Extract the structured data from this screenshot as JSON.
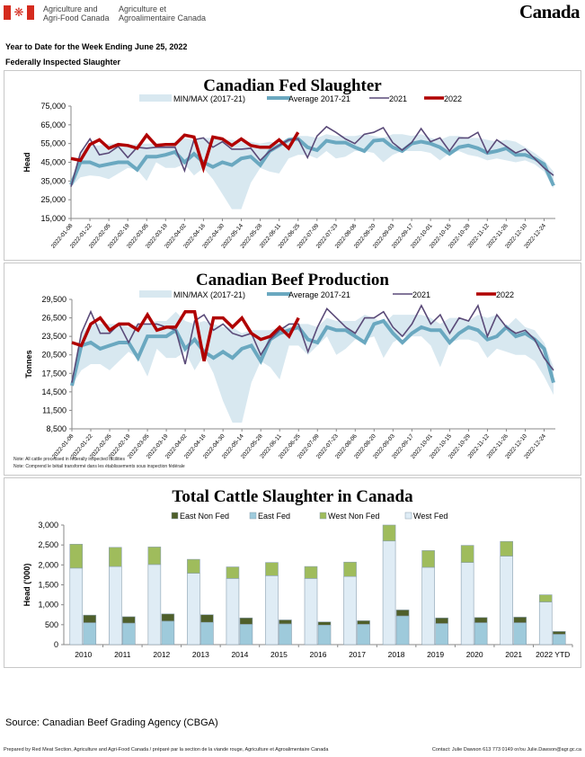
{
  "header": {
    "dept_en_line1": "Agriculture and",
    "dept_en_line2": "Agri-Food Canada",
    "dept_fr_line1": "Agriculture et",
    "dept_fr_line2": "Agroalimentaire Canada",
    "wordmark": "Canada",
    "flag_icon": "canada-flag-icon"
  },
  "subtitle": "Year to Date for the Week Ending June 25, 2022",
  "section": "Federally Inspected Slaughter",
  "colors": {
    "minmax": "#d8e8f0",
    "average": "#6aa8c0",
    "y2021": "#5a4a78",
    "y2022": "#b00000",
    "east_non_fed": "#4f5f2a",
    "east_fed": "#9ecadb",
    "west_non_fed": "#9fbc5c",
    "west_fed": "#dfecf5"
  },
  "chart_data": [
    {
      "type": "line",
      "title": "Canadian Fed Slaughter",
      "ylabel": "Head",
      "xlabel": "",
      "ylim": [
        15000,
        75000
      ],
      "yticks": [
        15000,
        25000,
        35000,
        45000,
        55000,
        65000,
        75000
      ],
      "ytick_labels": [
        "15,000",
        "25,000",
        "35,000",
        "45,000",
        "55,000",
        "65,000",
        "75,000"
      ],
      "xtick_labels": [
        "2022-01-08",
        "2022-01-22",
        "2022-02-05",
        "2022-02-19",
        "2022-03-05",
        "2022-03-19",
        "2022-04-02",
        "2022-04-16",
        "2022-04-30",
        "2022-05-14",
        "2022-05-28",
        "2022-06-11",
        "2022-06-25",
        "2022-07-09",
        "2022-07-23",
        "2022-08-06",
        "2022-08-20",
        "2022-09-03",
        "2022-09-17",
        "2022-10-01",
        "2022-10-15",
        "2022-10-29",
        "2022-11-12",
        "2022-11-26",
        "2022-12-10",
        "2022-12-24"
      ],
      "legend": [
        "MIN/MAX (2017-21)",
        "Average 2017-21",
        "2021",
        "2022"
      ],
      "legend_position": "top",
      "n_weeks": 52,
      "series": [
        {
          "name": "MIN",
          "values": [
            32000,
            37000,
            38000,
            37500,
            36000,
            39000,
            42000,
            41000,
            35000,
            45000,
            42000,
            42000,
            44000,
            38000,
            42000,
            36000,
            28000,
            20000,
            20000,
            34000,
            42000,
            40000,
            39000,
            47000,
            49000,
            49000,
            47000,
            51000,
            47000,
            48000,
            51000,
            51000,
            50000,
            45000,
            49000,
            51000,
            51000,
            51000,
            50000,
            46000,
            50000,
            51000,
            49000,
            48000,
            46000,
            47000,
            46000,
            45000,
            46000,
            44000,
            40000,
            31000
          ]
        },
        {
          "name": "MAX",
          "values": [
            35000,
            51000,
            54000,
            54000,
            55000,
            55000,
            54000,
            55000,
            55000,
            55000,
            55000,
            56000,
            58000,
            57000,
            58000,
            58000,
            57000,
            57000,
            56000,
            56000,
            55000,
            56000,
            55000,
            58000,
            59000,
            59000,
            58000,
            60000,
            59000,
            59000,
            59000,
            60000,
            59000,
            58000,
            60000,
            60000,
            59000,
            60000,
            58000,
            57000,
            59000,
            59000,
            58000,
            58000,
            57000,
            56000,
            57000,
            56000,
            53000,
            50000,
            46000,
            40000
          ]
        },
        {
          "name": "Average 2017-21",
          "values": [
            33000,
            45000,
            45000,
            43000,
            44000,
            45000,
            45000,
            41000,
            48000,
            48000,
            49000,
            50500,
            45000,
            49500,
            45000,
            42500,
            45000,
            43500,
            47000,
            48000,
            43500,
            51000,
            54000,
            57000,
            57500,
            53000,
            51500,
            56500,
            55500,
            55500,
            53000,
            51000,
            56500,
            57000,
            53000,
            51000,
            55000,
            56000,
            55000,
            53000,
            49500,
            53000,
            54000,
            52500,
            50000,
            51000,
            52500,
            49000,
            49000,
            47000,
            44000,
            32500
          ]
        },
        {
          "name": "2021",
          "values": [
            32000,
            50000,
            57500,
            49000,
            50000,
            53500,
            47500,
            53000,
            52500,
            53000,
            53000,
            53000,
            40500,
            57000,
            58000,
            53000,
            56000,
            52000,
            52000,
            52500,
            46000,
            51000,
            54000,
            57000,
            57500,
            47500,
            59000,
            64000,
            61000,
            57500,
            55000,
            60000,
            61000,
            63500,
            55500,
            51500,
            55500,
            63000,
            56000,
            58000,
            51000,
            58000,
            58000,
            61000,
            50000,
            57000,
            53500,
            50000,
            52000,
            47000,
            42000,
            38000
          ]
        },
        {
          "name": "2022",
          "values": [
            47000,
            46000,
            54500,
            57000,
            52500,
            54500,
            54000,
            52500,
            59500,
            54000,
            54500,
            54500,
            59500,
            58500,
            42000,
            58500,
            57500,
            54000,
            57500,
            54000,
            53000,
            53000,
            57000,
            52500,
            61000
          ]
        }
      ]
    },
    {
      "type": "line",
      "title": "Canadian Beef Production",
      "ylabel": "Tonnes",
      "xlabel": "",
      "ylim": [
        8500,
        29500
      ],
      "yticks": [
        8500,
        11500,
        14500,
        17500,
        20500,
        23500,
        26500,
        29500
      ],
      "ytick_labels": [
        "8,500",
        "11,500",
        "14,500",
        "17,500",
        "20,500",
        "23,500",
        "26,500",
        "29,500"
      ],
      "xtick_labels": [
        "2022-01-08",
        "2022-01-22",
        "2022-02-05",
        "2022-02-19",
        "2022-03-05",
        "2022-03-19",
        "2022-04-02",
        "2022-04-16",
        "2022-04-30",
        "2022-05-14",
        "2022-05-28",
        "2022-06-11",
        "2022-06-25",
        "2022-07-09",
        "2022-07-23",
        "2022-08-06",
        "2022-08-20",
        "2022-09-03",
        "2022-09-17",
        "2022-10-01",
        "2022-10-15",
        "2022-10-29",
        "2022-11-12",
        "2022-11-26",
        "2022-12-10",
        "2022-12-24"
      ],
      "legend": [
        "MIN/MAX (2017-21)",
        "Average 2017-21",
        "2021",
        "2022"
      ],
      "legend_position": "top",
      "n_weeks": 52,
      "series": [
        {
          "name": "MIN",
          "values": [
            15500,
            18000,
            19000,
            19000,
            18000,
            19500,
            21000,
            20000,
            17000,
            21500,
            20000,
            20000,
            21000,
            18000,
            20500,
            17500,
            13000,
            9500,
            9500,
            16000,
            19500,
            18500,
            16500,
            22000,
            22000,
            20500,
            22000,
            23500,
            20500,
            21500,
            23000,
            23000,
            23500,
            20000,
            22500,
            23500,
            23500,
            23500,
            22000,
            18500,
            22500,
            23000,
            23000,
            22500,
            20000,
            21500,
            21000,
            20500,
            20500,
            19500,
            17000,
            14000
          ]
        },
        {
          "name": "MAX",
          "values": [
            16500,
            24000,
            25500,
            25500,
            25500,
            25500,
            25000,
            25500,
            25500,
            26000,
            26000,
            27500,
            26000,
            25500,
            26000,
            25500,
            25000,
            25000,
            24000,
            24500,
            24500,
            24500,
            25000,
            25000,
            25500,
            25500,
            25000,
            26500,
            26000,
            26000,
            26000,
            27000,
            26500,
            25500,
            27000,
            27000,
            27000,
            27000,
            26500,
            25500,
            26500,
            26500,
            26000,
            27000,
            26500,
            27000,
            25000,
            26500,
            25000,
            24500,
            22500,
            18500
          ]
        },
        {
          "name": "Average 2017-21",
          "values": [
            15500,
            22000,
            22500,
            21500,
            22000,
            22500,
            22500,
            20000,
            23500,
            23500,
            23500,
            24500,
            21500,
            23000,
            21000,
            20000,
            21000,
            20000,
            21500,
            22000,
            19500,
            23000,
            24000,
            24500,
            25000,
            23000,
            22500,
            25000,
            24500,
            24500,
            23500,
            22500,
            25500,
            26000,
            24000,
            22500,
            24000,
            25000,
            24500,
            24500,
            22500,
            24000,
            25000,
            24500,
            23000,
            23500,
            25000,
            23500,
            24000,
            23000,
            21500,
            16000
          ]
        },
        {
          "name": "2021",
          "values": [
            16000,
            24000,
            27500,
            24000,
            24000,
            25500,
            22500,
            25500,
            25500,
            25500,
            25000,
            24500,
            19000,
            26000,
            27000,
            24500,
            25500,
            24000,
            23500,
            24000,
            20500,
            23000,
            24500,
            25500,
            25500,
            21000,
            25000,
            28000,
            26500,
            25000,
            24000,
            26500,
            26500,
            27500,
            25000,
            23500,
            25500,
            28500,
            25500,
            27000,
            24000,
            26500,
            26000,
            28500,
            23500,
            27000,
            25000,
            24000,
            24500,
            23000,
            20000,
            18000
          ]
        },
        {
          "name": "2022",
          "values": [
            22500,
            22000,
            25500,
            26500,
            24500,
            25500,
            25500,
            24500,
            27000,
            24500,
            25000,
            25000,
            27500,
            27500,
            19500,
            26500,
            26500,
            25000,
            26500,
            24000,
            23000,
            23500,
            25000,
            23500,
            26500
          ]
        }
      ]
    },
    {
      "type": "bar",
      "stacked": true,
      "title": "Total Cattle Slaughter in Canada",
      "ylabel": "Head ('000)",
      "xlabel": "",
      "ylim": [
        0,
        3000
      ],
      "yticks": [
        0,
        500,
        1000,
        1500,
        2000,
        2500,
        3000
      ],
      "ytick_labels": [
        "0",
        "500",
        "1,000",
        "1,500",
        "2,000",
        "2,500",
        "3,000"
      ],
      "categories": [
        "2010",
        "2011",
        "2012",
        "2013",
        "2014",
        "2015",
        "2016",
        "2017",
        "2018",
        "2019",
        "2020",
        "2021",
        "2022 YTD"
      ],
      "legend": [
        "East Non Fed",
        "East Fed",
        "West Non Fed",
        "West Fed"
      ],
      "legend_position": "top",
      "series": [
        {
          "name": "West Fed",
          "stack": "west",
          "values": [
            1920,
            1960,
            2010,
            1790,
            1660,
            1730,
            1660,
            1710,
            2600,
            1940,
            2060,
            2220,
            1070
          ]
        },
        {
          "name": "West Non Fed",
          "stack": "west",
          "values": [
            600,
            480,
            440,
            350,
            290,
            330,
            300,
            360,
            400,
            420,
            430,
            370,
            180
          ]
        },
        {
          "name": "East Fed",
          "stack": "east",
          "values": [
            550,
            540,
            590,
            560,
            510,
            520,
            490,
            510,
            720,
            530,
            550,
            550,
            260
          ]
        },
        {
          "name": "East Non Fed",
          "stack": "east",
          "values": [
            190,
            160,
            180,
            190,
            160,
            100,
            80,
            90,
            150,
            140,
            130,
            140,
            70
          ]
        }
      ]
    }
  ],
  "notes": {
    "en": "Note: All cattle processed in federally inspected facilities",
    "fr": "Note: Comprend le bétail transformé dans les établissements sous inspection fédérale"
  },
  "source": "Source: Canadian Beef Grading Agency (CBGA)",
  "footer": {
    "prepared_by": "Prepared by Red Meat Section, Agriculture and Agri-Food Canada / préparé par la section de la viande rouge, Agriculture et Agroalimentaire Canada",
    "contact": "Contact: Julie Dawson 613 773 0149 or/ou Julie.Dawson@agr.gc.ca"
  }
}
